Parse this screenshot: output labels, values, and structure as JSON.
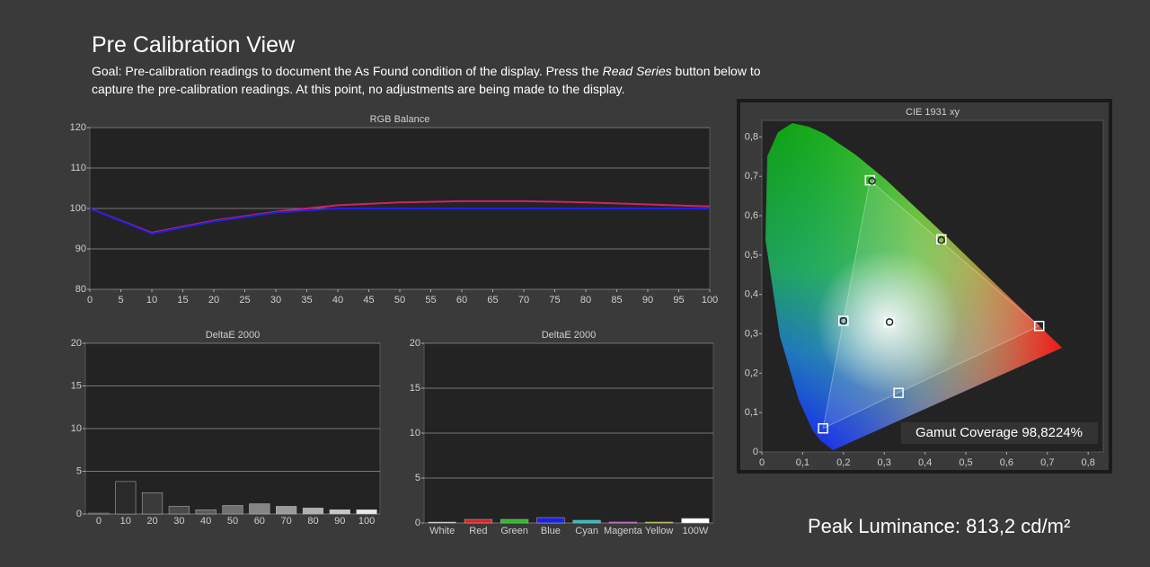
{
  "header": {
    "title": "Pre Calibration View",
    "goal_before": "Goal: Pre-calibration readings to document the As Found condition of the display. Press the ",
    "goal_italic": "Read Series",
    "goal_after": " button below to capture the pre-calibration readings. At this point, no adjustments are being made to the display."
  },
  "gamut_coverage": "Gamut Coverage 98,8224%",
  "peak_luminance": "Peak Luminance: 813,2 cd/m²",
  "chart_data": [
    {
      "type": "line",
      "title": "RGB Balance",
      "x": [
        0,
        10,
        20,
        30,
        40,
        50,
        60,
        70,
        80,
        90,
        100
      ],
      "series": [
        {
          "color": "#d0206a",
          "values": [
            100,
            94,
            97,
            99.2,
            100.8,
            101.5,
            101.8,
            101.8,
            101.5,
            101,
            100.5
          ]
        },
        {
          "color": "#2020e8",
          "values": [
            100,
            93.8,
            96.8,
            99,
            100,
            100,
            100,
            100,
            100,
            100,
            100
          ]
        }
      ],
      "xlim": [
        0,
        100
      ],
      "xticks": [
        0,
        5,
        10,
        15,
        20,
        25,
        30,
        35,
        40,
        45,
        50,
        55,
        60,
        65,
        70,
        75,
        80,
        85,
        90,
        95,
        100
      ],
      "ylim": [
        80,
        120
      ],
      "yticks": [
        80,
        90,
        100,
        110,
        120
      ],
      "grid": true
    },
    {
      "type": "bar",
      "title": "DeltaE 2000",
      "categories": [
        "0",
        "10",
        "20",
        "30",
        "40",
        "50",
        "60",
        "70",
        "80",
        "90",
        "100"
      ],
      "values": [
        0.1,
        3.8,
        2.5,
        0.9,
        0.5,
        1.0,
        1.2,
        0.9,
        0.7,
        0.5,
        0.5
      ],
      "colors": [
        "#111111",
        "#2a2a2a",
        "#3a3a3a",
        "#4a4a4a",
        "#5a5a5a",
        "#707070",
        "#858585",
        "#9a9a9a",
        "#b0b0b0",
        "#c8c8c8",
        "#e8e8e8"
      ],
      "ylim": [
        0,
        20
      ],
      "yticks": [
        0,
        5,
        10,
        15,
        20
      ],
      "grid": true
    },
    {
      "type": "bar",
      "title": "DeltaE 2000",
      "categories": [
        "White",
        "Red",
        "Green",
        "Blue",
        "Cyan",
        "Magenta",
        "Yellow",
        "100W"
      ],
      "values": [
        0.1,
        0.4,
        0.4,
        0.6,
        0.3,
        0.1,
        0.1,
        0.5
      ],
      "colors": [
        "#dddddd",
        "#e02020",
        "#20c020",
        "#2020e0",
        "#20c0c0",
        "#c020c0",
        "#c0c020",
        "#ffffff"
      ],
      "ylim": [
        0,
        20
      ],
      "yticks": [
        0,
        5,
        10,
        15,
        20
      ],
      "grid": true
    },
    {
      "type": "scatter",
      "title": "CIE 1931 xy",
      "series": [
        {
          "marker": "square",
          "color": "#ffffff",
          "x": [
            0.68,
            0.265,
            0.15,
            0.3127,
            0.2,
            0.44,
            0.335
          ],
          "y": [
            0.32,
            0.69,
            0.06,
            0.329,
            0.333,
            0.54,
            0.15
          ]
        },
        {
          "marker": "circle",
          "color": "#222222",
          "x": [
            0.27,
            0.44,
            0.313,
            0.2
          ],
          "y": [
            0.688,
            0.538,
            0.33,
            0.333
          ]
        }
      ],
      "xlim": [
        0,
        0.837
      ],
      "xticks": [
        0,
        {
          "value": 0.1,
          "label": "0,1"
        },
        {
          "value": 0.2,
          "label": "0,2"
        },
        {
          "value": 0.3,
          "label": "0,3"
        },
        {
          "value": 0.4,
          "label": "0,4"
        },
        {
          "value": 0.5,
          "label": "0,5"
        },
        {
          "value": 0.6,
          "label": "0,6"
        },
        {
          "value": 0.7,
          "label": "0,7"
        },
        {
          "value": 0.8,
          "label": "0,8"
        }
      ],
      "ylim": [
        0,
        0.842
      ],
      "yticks": [
        0,
        {
          "value": 0.1,
          "label": "0,1"
        },
        {
          "value": 0.2,
          "label": "0,2"
        },
        {
          "value": 0.3,
          "label": "0,3"
        },
        {
          "value": 0.4,
          "label": "0,4"
        },
        {
          "value": 0.5,
          "label": "0,5"
        },
        {
          "value": 0.6,
          "label": "0,6"
        },
        {
          "value": 0.7,
          "label": "0,7"
        },
        {
          "value": 0.8,
          "label": "0,8"
        }
      ],
      "grid": false
    }
  ]
}
